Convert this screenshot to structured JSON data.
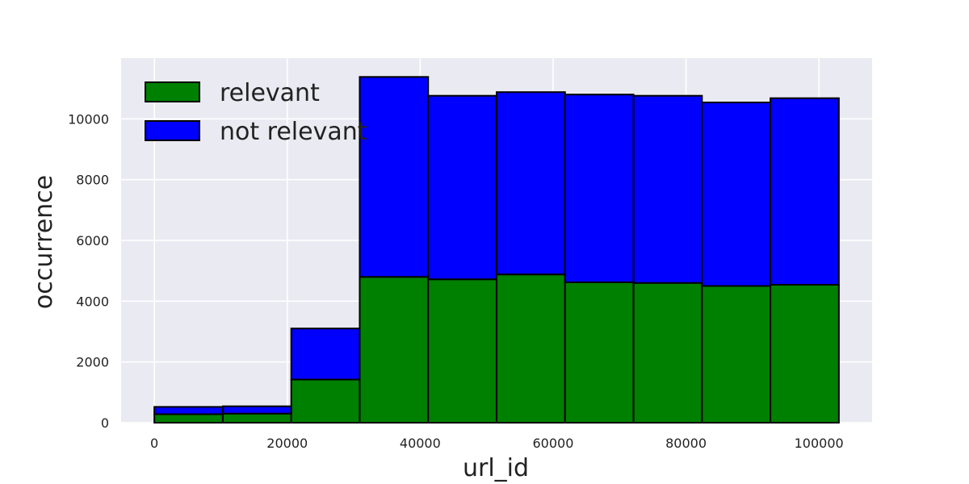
{
  "chart_data": {
    "type": "bar",
    "stacked": true,
    "title": "",
    "xlabel": "url_id",
    "ylabel": "occurrence",
    "xlim": [
      -5000,
      108000
    ],
    "ylim": [
      0,
      12000
    ],
    "xticks": [
      0,
      20000,
      40000,
      60000,
      80000,
      100000
    ],
    "yticks": [
      0,
      2000,
      4000,
      6000,
      8000,
      10000
    ],
    "grid": true,
    "legend_position": "top-left",
    "bin_edges": [
      0,
      10300,
      20600,
      30900,
      41200,
      51500,
      61800,
      72100,
      82400,
      92700,
      103000
    ],
    "series": [
      {
        "name": "relevant",
        "color": "#008000",
        "values": [
          280,
          300,
          1420,
          4800,
          4720,
          4880,
          4620,
          4600,
          4500,
          4540
        ]
      },
      {
        "name": "not relevant",
        "color": "#0000ff",
        "values": [
          240,
          240,
          1680,
          6580,
          6040,
          6000,
          6180,
          6160,
          6040,
          6140
        ]
      }
    ],
    "colors": {
      "background": "#eaeaf2",
      "grid": "#ffffff",
      "edge": "#000000"
    }
  }
}
